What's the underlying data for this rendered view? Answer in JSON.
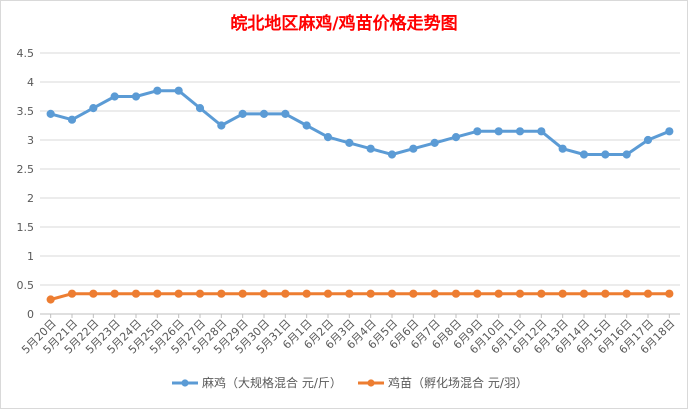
{
  "chart_data": {
    "type": "line",
    "title": "皖北地区麻鸡/鸡苗价格走势图",
    "categories": [
      "5月20日",
      "5月21日",
      "5月22日",
      "5月23日",
      "5月24日",
      "5月25日",
      "5月26日",
      "5月27日",
      "5月28日",
      "5月29日",
      "5月30日",
      "5月31日",
      "6月1日",
      "6月2日",
      "6月3日",
      "6月4日",
      "6月5日",
      "6月6日",
      "6月7日",
      "6月8日",
      "6月9日",
      "6月10日",
      "6月11日",
      "6月12日",
      "6月13日",
      "6月14日",
      "6月15日",
      "6月16日",
      "6月17日",
      "6月18日"
    ],
    "series": [
      {
        "name": "麻鸡（大规格混合 元/斤）",
        "color": "#5b9bd5",
        "values": [
          3.45,
          3.35,
          3.55,
          3.75,
          3.75,
          3.85,
          3.85,
          3.55,
          3.25,
          3.45,
          3.45,
          3.45,
          3.25,
          3.05,
          2.95,
          2.85,
          2.75,
          2.85,
          2.95,
          3.05,
          3.15,
          3.15,
          3.15,
          3.15,
          2.85,
          2.75,
          2.75,
          2.75,
          3.0,
          3.15
        ]
      },
      {
        "name": "鸡苗（孵化场混合 元/羽）",
        "color": "#ed7d31",
        "values": [
          0.25,
          0.35,
          0.35,
          0.35,
          0.35,
          0.35,
          0.35,
          0.35,
          0.35,
          0.35,
          0.35,
          0.35,
          0.35,
          0.35,
          0.35,
          0.35,
          0.35,
          0.35,
          0.35,
          0.35,
          0.35,
          0.35,
          0.35,
          0.35,
          0.35,
          0.35,
          0.35,
          0.35,
          0.35,
          0.35
        ]
      }
    ],
    "yticks": [
      "0",
      "0.5",
      "1",
      "1.5",
      "2",
      "2.5",
      "3",
      "3.5",
      "4",
      "4.5"
    ],
    "ylim": [
      0,
      4.5
    ],
    "grid": true,
    "legend": "bottom"
  }
}
